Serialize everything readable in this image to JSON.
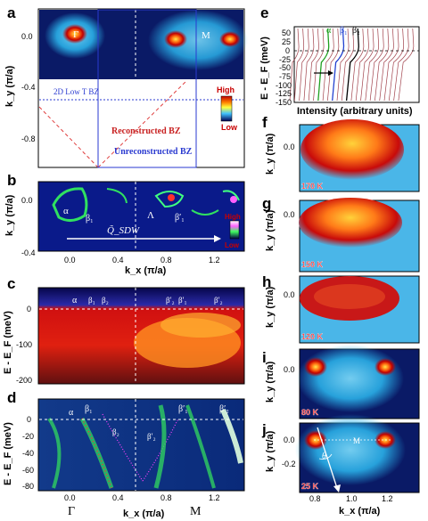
{
  "panels": {
    "a": {
      "label": "a",
      "ylabel": "k_y (π/a)",
      "yticks": [
        "0.0",
        "-0.4",
        "-0.8"
      ],
      "points": [
        "Γ",
        "M"
      ],
      "legend_2d": "2D Low T BZ",
      "legend_recon": "Reconstructed BZ",
      "legend_unrecon": "Unreconstructed BZ",
      "cbar_high": "High",
      "cbar_low": "Low"
    },
    "b": {
      "label": "b",
      "ylabel": "k_y (π/a)",
      "yticks": [
        "0.0",
        "-0.4"
      ],
      "xticks": [
        "0.0",
        "0.4",
        "0.8",
        "1.2"
      ],
      "xlabel": "k_x (π/a)",
      "bands": [
        "α",
        "β₁",
        "Λ",
        "β′₁"
      ],
      "vector": "Q̃_SDW",
      "cbar_high": "High",
      "cbar_low": "Low"
    },
    "c": {
      "label": "c",
      "ylabel": "E - E_F (meV)",
      "yticks": [
        "0",
        "-100",
        "-200"
      ],
      "bands": [
        "α",
        "β₁",
        "β₂",
        "β′₂",
        "β′₁",
        "β′₂"
      ]
    },
    "d": {
      "label": "d",
      "ylabel": "E - E_F (meV)",
      "yticks": [
        "0",
        "-20",
        "-40",
        "-60",
        "-80"
      ],
      "xticks": [
        "0.0",
        "0.4",
        "0.8",
        "1.2"
      ],
      "xlabel": "k_x (π/a)",
      "bands": [
        "α",
        "β₁",
        "β₂",
        "β′₂",
        "β′₁",
        "β′₂"
      ],
      "points": [
        "Γ",
        "M"
      ]
    },
    "e": {
      "label": "e",
      "ylabel": "E - E_F (meV)",
      "yticks": [
        "50",
        "25",
        "0",
        "-25",
        "-50",
        "-75",
        "-100",
        "-125",
        "-150"
      ],
      "xlabel": "Intensity (arbitrary units)",
      "bands": [
        "α",
        "β₁",
        "β₂"
      ]
    },
    "temps": [
      {
        "label": "f",
        "temp": "170 K"
      },
      {
        "label": "g",
        "temp": "150 K"
      },
      {
        "label": "h",
        "temp": "120 K"
      },
      {
        "label": "i",
        "temp": "80 K"
      },
      {
        "label": "j",
        "temp": "25 K"
      }
    ],
    "temp_ylabel": "k_y (π/a)",
    "temp_ytick": "0.0",
    "temp_ytick_j2": "-0.2",
    "j_xticks": [
      "0.8",
      "1.0",
      "1.2"
    ],
    "j_xlabel": "k_x (π/a)",
    "j_point": "M",
    "j_theta": "θ"
  }
}
